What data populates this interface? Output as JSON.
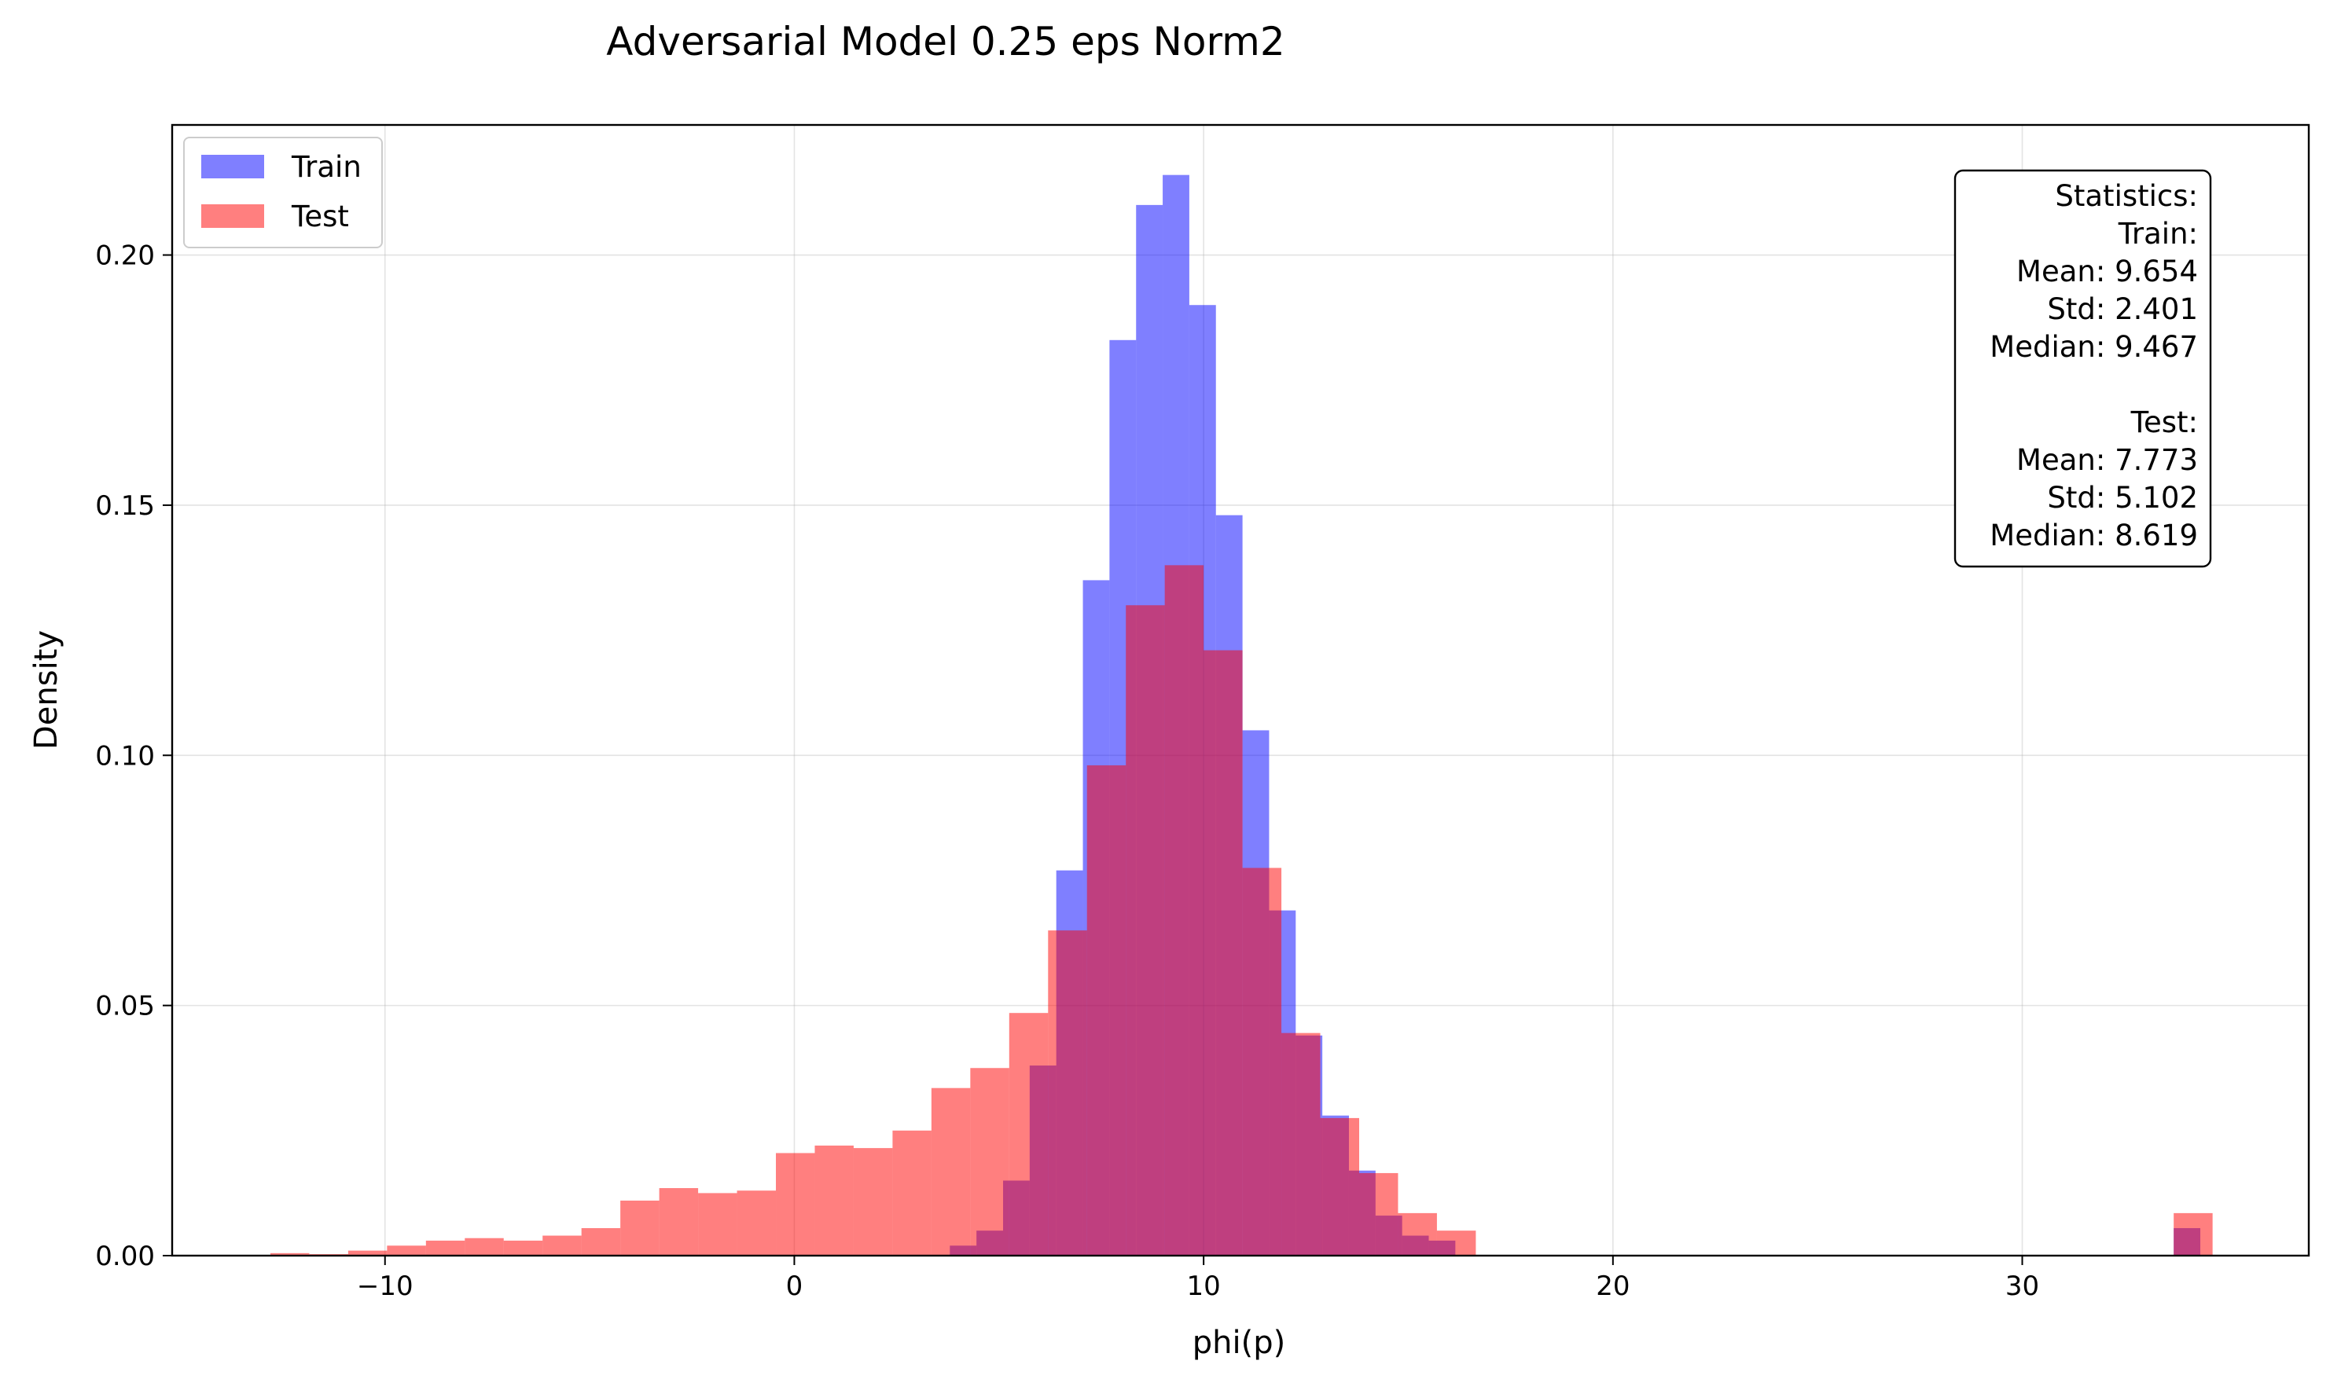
{
  "chart_data": {
    "type": "bar",
    "title": "Adversarial Model 0.25 eps Norm2",
    "xlabel": "phi(p)",
    "ylabel": "Density",
    "xlim": [
      -15.2,
      37.0
    ],
    "ylim": [
      0,
      0.226
    ],
    "xticks": [
      -10,
      0,
      10,
      20,
      30
    ],
    "xtick_labels": [
      "−10",
      "0",
      "10",
      "20",
      "30"
    ],
    "yticks": [
      0.0,
      0.05,
      0.1,
      0.15,
      0.2
    ],
    "ytick_labels": [
      "0.00",
      "0.05",
      "0.10",
      "0.15",
      "0.20"
    ],
    "grid": true,
    "legend_position": "upper-left",
    "series": [
      {
        "name": "Train",
        "color": "#0000ff",
        "alpha": 0.5,
        "bin_edges": [
          3.8,
          4.45,
          5.1,
          5.75,
          6.4,
          7.05,
          7.7,
          8.35,
          9.0,
          9.65,
          10.3,
          10.95,
          11.6,
          12.25,
          12.9,
          13.55,
          14.2,
          14.85,
          15.5,
          16.15
        ],
        "values": [
          0.002,
          0.005,
          0.015,
          0.038,
          0.077,
          0.135,
          0.183,
          0.21,
          0.216,
          0.19,
          0.148,
          0.105,
          0.069,
          0.044,
          0.028,
          0.017,
          0.008,
          0.004,
          0.003
        ],
        "outliers": [
          {
            "x0": 33.7,
            "x1": 34.35,
            "value": 0.0055
          }
        ]
      },
      {
        "name": "Test",
        "color": "#ff0000",
        "alpha": 0.5,
        "bin_edges": [
          -12.8,
          -11.85,
          -10.9,
          -9.95,
          -9.0,
          -8.05,
          -7.1,
          -6.15,
          -5.2,
          -4.25,
          -3.3,
          -2.35,
          -1.4,
          -0.45,
          0.5,
          1.45,
          2.4,
          3.35,
          4.3,
          5.25,
          6.2,
          7.15,
          8.1,
          9.05,
          10.0,
          10.95,
          11.9,
          12.85,
          13.8,
          14.75,
          15.7,
          16.65
        ],
        "values": [
          0.0005,
          0.0003,
          0.001,
          0.002,
          0.003,
          0.0035,
          0.003,
          0.004,
          0.0055,
          0.011,
          0.0135,
          0.0125,
          0.013,
          0.0205,
          0.022,
          0.0215,
          0.025,
          0.0335,
          0.0375,
          0.0485,
          0.065,
          0.098,
          0.13,
          0.138,
          0.121,
          0.0775,
          0.0445,
          0.0275,
          0.0165,
          0.0085,
          0.005
        ],
        "outliers": [
          {
            "x0": 33.7,
            "x1": 34.65,
            "value": 0.0085
          }
        ]
      }
    ],
    "legend": {
      "entries": [
        {
          "label": "Train",
          "color": "#0000ff"
        },
        {
          "label": "Test",
          "color": "#ff0000"
        }
      ]
    },
    "stats_box": {
      "lines": [
        "Statistics:",
        "Train:",
        "Mean: 9.654",
        "Std: 2.401",
        "Median: 9.467",
        "",
        "Test:",
        "Mean: 7.773",
        "Std: 5.102",
        "Median: 8.619"
      ]
    }
  }
}
